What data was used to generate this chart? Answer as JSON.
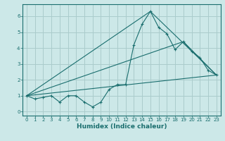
{
  "title": "",
  "xlabel": "Humidex (Indice chaleur)",
  "ylabel": "",
  "background_color": "#cce8e8",
  "grid_color": "#aacccc",
  "line_color": "#1a6e6e",
  "xlim": [
    -0.5,
    23.5
  ],
  "ylim": [
    -0.25,
    6.75
  ],
  "xticks": [
    0,
    1,
    2,
    3,
    4,
    5,
    6,
    7,
    8,
    9,
    10,
    11,
    12,
    13,
    14,
    15,
    16,
    17,
    18,
    19,
    20,
    21,
    22,
    23
  ],
  "yticks": [
    0,
    1,
    2,
    3,
    4,
    5,
    6
  ],
  "series1_x": [
    0,
    1,
    2,
    3,
    4,
    5,
    6,
    7,
    8,
    9,
    10,
    11,
    12,
    13,
    14,
    15,
    16,
    17,
    18,
    19,
    20,
    21,
    22,
    23
  ],
  "series1_y": [
    1.0,
    0.8,
    0.9,
    1.0,
    0.6,
    1.0,
    1.0,
    0.6,
    0.3,
    0.6,
    1.4,
    1.7,
    1.7,
    4.2,
    5.5,
    6.3,
    5.3,
    4.9,
    3.9,
    4.4,
    3.8,
    3.4,
    2.6,
    2.3
  ],
  "series2_x": [
    0,
    23
  ],
  "series2_y": [
    1.0,
    2.3
  ],
  "series3_x": [
    0,
    19,
    23
  ],
  "series3_y": [
    1.0,
    4.4,
    2.3
  ],
  "series4_x": [
    0,
    15,
    23
  ],
  "series4_y": [
    1.0,
    6.3,
    2.3
  ],
  "xlabel_fontsize": 6.5,
  "tick_fontsize": 5.0,
  "ylabel_fontsize": 6.5
}
